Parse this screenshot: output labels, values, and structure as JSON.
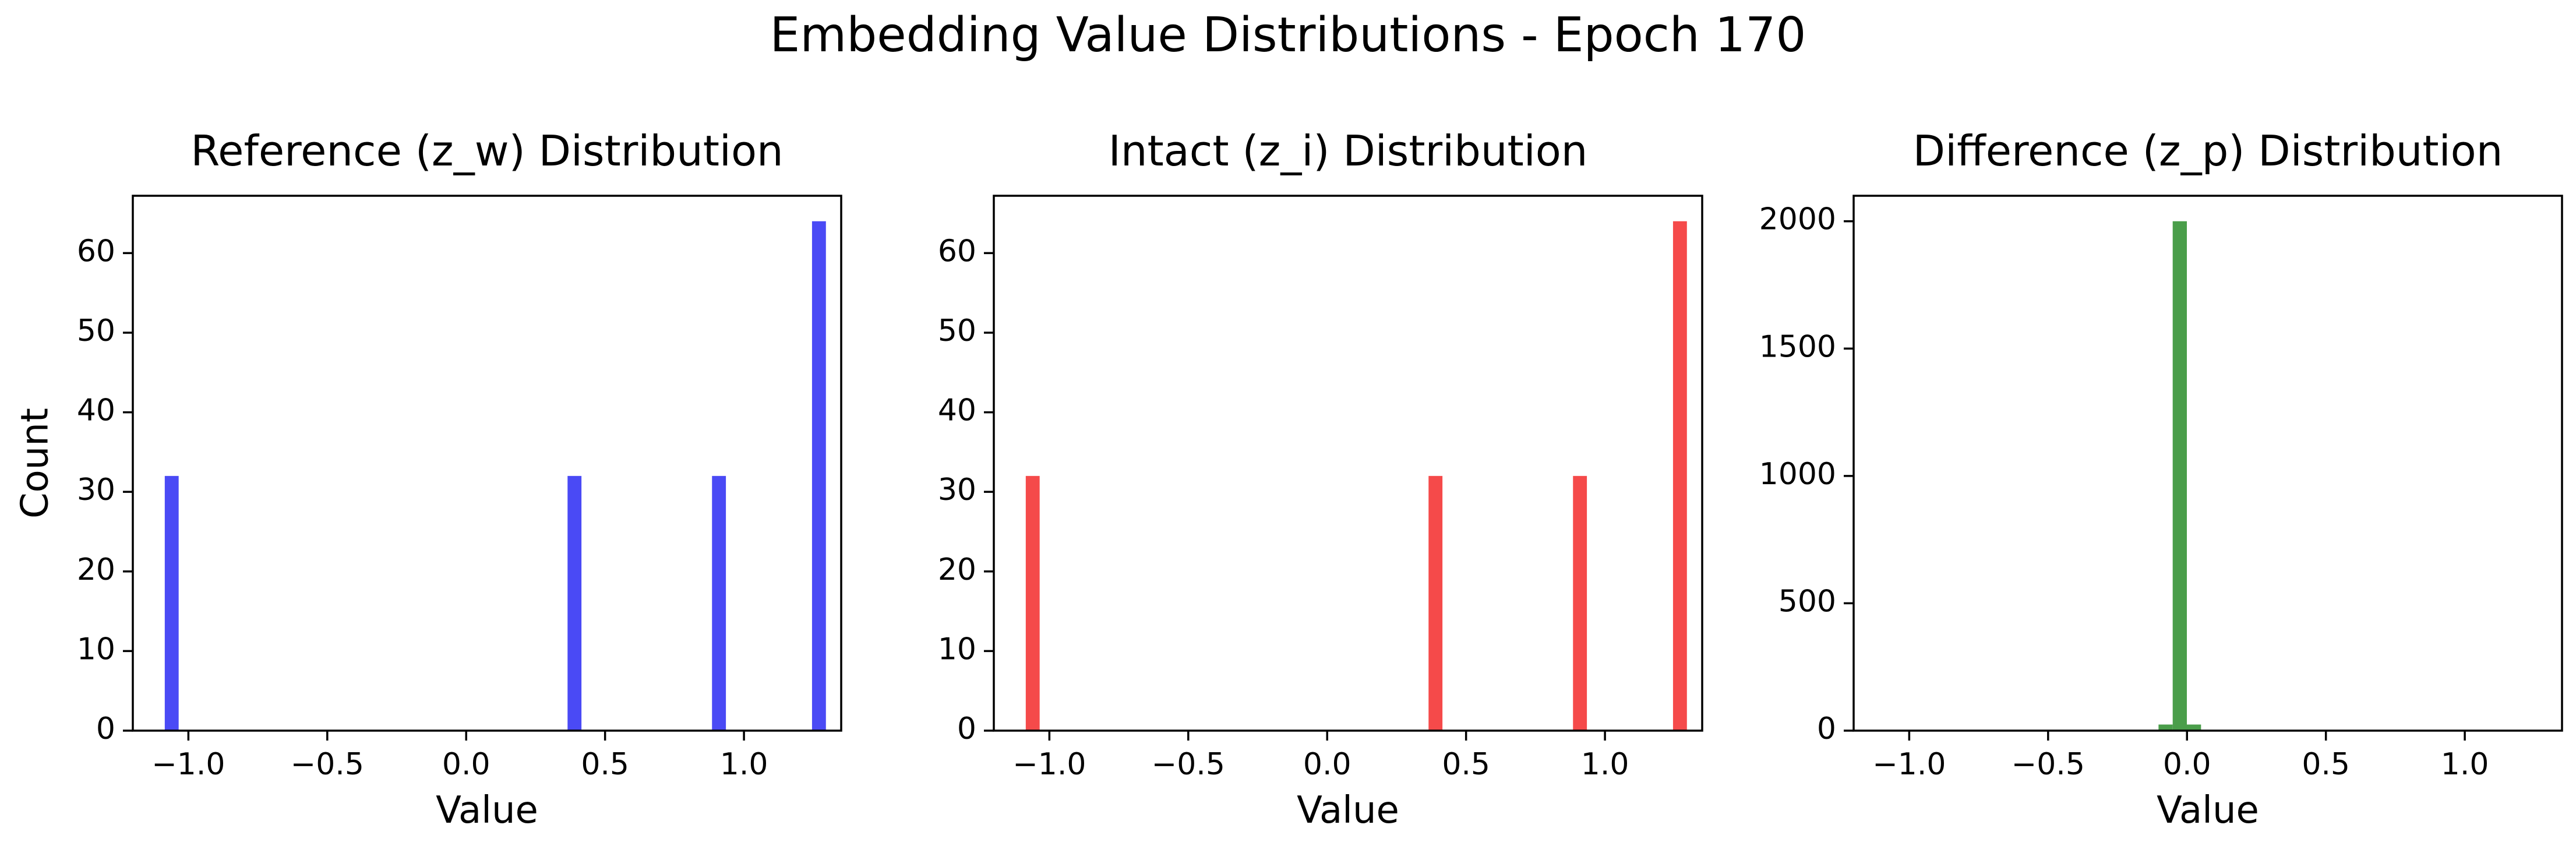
{
  "figure_title": "Embedding Value Distributions - Epoch 170",
  "chart_data": [
    {
      "type": "bar",
      "title": "Reference (z_w) Distribution",
      "xlabel": "Value",
      "ylabel": "Count",
      "color": "#4a4af5",
      "xlim": [
        -1.2,
        1.35
      ],
      "ylim": [
        0,
        67.2
      ],
      "xticks": [
        -1.0,
        -0.5,
        0.0,
        0.5,
        1.0
      ],
      "xtick_labels": [
        "−1.0",
        "−0.5",
        "0.0",
        "0.5",
        "1.0"
      ],
      "yticks": [
        0,
        10,
        20,
        30,
        40,
        50,
        60
      ],
      "ytick_labels": [
        "0",
        "10",
        "20",
        "30",
        "40",
        "50",
        "60"
      ],
      "bar_width": 0.05,
      "bars": [
        {
          "x": -1.06,
          "value": 32
        },
        {
          "x": 0.39,
          "value": 32
        },
        {
          "x": 0.91,
          "value": 32
        },
        {
          "x": 1.27,
          "value": 64
        }
      ]
    },
    {
      "type": "bar",
      "title": "Intact (z_i) Distribution",
      "xlabel": "Value",
      "ylabel": "",
      "color": "#f54a4a",
      "xlim": [
        -1.2,
        1.35
      ],
      "ylim": [
        0,
        67.2
      ],
      "xticks": [
        -1.0,
        -0.5,
        0.0,
        0.5,
        1.0
      ],
      "xtick_labels": [
        "−1.0",
        "−0.5",
        "0.0",
        "0.5",
        "1.0"
      ],
      "yticks": [
        0,
        10,
        20,
        30,
        40,
        50,
        60
      ],
      "ytick_labels": [
        "0",
        "10",
        "20",
        "30",
        "40",
        "50",
        "60"
      ],
      "bar_width": 0.05,
      "bars": [
        {
          "x": -1.06,
          "value": 32
        },
        {
          "x": 0.39,
          "value": 32
        },
        {
          "x": 0.91,
          "value": 32
        },
        {
          "x": 1.27,
          "value": 64
        }
      ]
    },
    {
      "type": "bar",
      "title": "Difference (z_p) Distribution",
      "xlabel": "Value",
      "ylabel": "",
      "color": "#4a9e4a",
      "xlim": [
        -1.2,
        1.35
      ],
      "ylim": [
        0,
        2100
      ],
      "xticks": [
        -1.0,
        -0.5,
        0.0,
        0.5,
        1.0
      ],
      "xtick_labels": [
        "−1.0",
        "−0.5",
        "0.0",
        "0.5",
        "1.0"
      ],
      "yticks": [
        0,
        500,
        1000,
        1500,
        2000
      ],
      "ytick_labels": [
        "0",
        "500",
        "1000",
        "1500",
        "2000"
      ],
      "bar_width": 0.051,
      "bars": [
        {
          "x": -0.077,
          "value": 24
        },
        {
          "x": -0.026,
          "value": 2000
        },
        {
          "x": 0.025,
          "value": 24
        }
      ]
    }
  ]
}
